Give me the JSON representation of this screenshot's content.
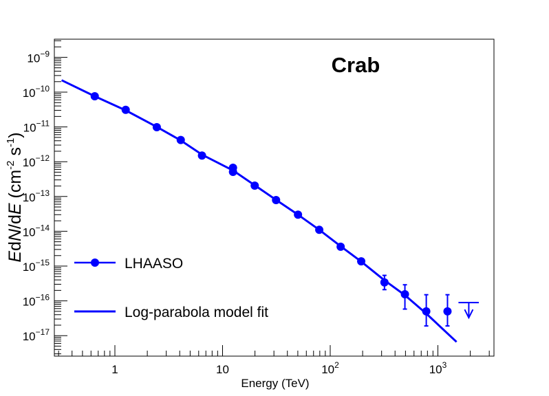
{
  "chart_data": {
    "type": "scatter",
    "title": "Crab",
    "xlabel": "Energy (TeV)",
    "ylabel": "EdN/dE (cm^-2 s^-1)",
    "xscale": "log",
    "yscale": "log",
    "xlim": [
      0.3,
      3200
    ],
    "ylim": [
      3e-18,
      3.3e-09
    ],
    "x_tick_labels": [
      {
        "value": 1,
        "base": "1",
        "exp": ""
      },
      {
        "value": 10,
        "base": "10",
        "exp": ""
      },
      {
        "value": 100,
        "base": "10",
        "exp": "2"
      },
      {
        "value": 1000,
        "base": "10",
        "exp": "3"
      }
    ],
    "y_tick_labels": [
      {
        "value": 1e-09,
        "base": "10",
        "exp": "−9"
      },
      {
        "value": 1e-10,
        "base": "10",
        "exp": "−10"
      },
      {
        "value": 1e-11,
        "base": "10",
        "exp": "−11"
      },
      {
        "value": 1e-12,
        "base": "10",
        "exp": "−12"
      },
      {
        "value": 1e-13,
        "base": "10",
        "exp": "−13"
      },
      {
        "value": 1e-14,
        "base": "10",
        "exp": "−14"
      },
      {
        "value": 1e-15,
        "base": "10",
        "exp": "−15"
      },
      {
        "value": 1e-16,
        "base": "10",
        "exp": "−16"
      },
      {
        "value": 1e-17,
        "base": "10",
        "exp": "−17"
      }
    ],
    "grid": false,
    "legend": {
      "placement": "bottom-left",
      "entries": [
        {
          "label": "LHAASO",
          "style": "marker-line"
        },
        {
          "label": "Log-parabola model fit",
          "style": "line"
        }
      ]
    },
    "color": "#0000ff",
    "series": [
      {
        "name": "LHAASO",
        "type": "scatter",
        "points": [
          {
            "x": 0.65,
            "y": 7.6e-11
          },
          {
            "x": 1.26,
            "y": 3.1e-11
          },
          {
            "x": 2.45,
            "y": 9.8e-12
          },
          {
            "x": 4.09,
            "y": 4.2e-12
          },
          {
            "x": 6.44,
            "y": 1.5e-12
          },
          {
            "x": 12.5,
            "y": 6.7e-13
          },
          {
            "x": 12.5,
            "y": 5.1e-13
          },
          {
            "x": 19.9,
            "y": 2.05e-13
          },
          {
            "x": 31.4,
            "y": 7.9e-14
          },
          {
            "x": 50.2,
            "y": 3e-14
          },
          {
            "x": 79.1,
            "y": 1.1e-14
          },
          {
            "x": 125,
            "y": 3.6e-15
          },
          {
            "x": 194,
            "y": 1.37e-15
          },
          {
            "x": 319,
            "y": 3.4e-16,
            "y_low": 2.1e-16,
            "y_high": 5.4e-16
          },
          {
            "x": 494,
            "y": 1.55e-16,
            "y_low": 5.8e-17,
            "y_high": 2.9e-16
          },
          {
            "x": 780,
            "y": 5e-17,
            "y_low": 1.9e-17,
            "y_high": 1.5e-16
          },
          {
            "x": 1228,
            "y": 5e-17,
            "y_low": 1.9e-17,
            "y_high": 1.5e-16
          }
        ],
        "upper_limits": [
          {
            "x": 1936,
            "y": 8.9e-17,
            "x_low": 1380,
            "x_high": 2700
          }
        ]
      },
      {
        "name": "Log-parabola model fit",
        "type": "line",
        "points": [
          {
            "x": 0.32,
            "y": 2.2e-10
          },
          {
            "x": 0.65,
            "y": 7.6e-11
          },
          {
            "x": 1.26,
            "y": 3e-11
          },
          {
            "x": 2.45,
            "y": 1e-11
          },
          {
            "x": 4.09,
            "y": 4.1e-12
          },
          {
            "x": 6.44,
            "y": 1.6e-12
          },
          {
            "x": 12.5,
            "y": 5.6e-13
          },
          {
            "x": 19.9,
            "y": 2.1e-13
          },
          {
            "x": 31.4,
            "y": 8e-14
          },
          {
            "x": 50.2,
            "y": 3e-14
          },
          {
            "x": 79.1,
            "y": 1.1e-14
          },
          {
            "x": 125,
            "y": 3.7e-15
          },
          {
            "x": 194,
            "y": 1.35e-15
          },
          {
            "x": 319,
            "y": 3.9e-16
          },
          {
            "x": 494,
            "y": 1.45e-16
          },
          {
            "x": 780,
            "y": 4.3e-17
          },
          {
            "x": 1490,
            "y": 6.6e-18
          }
        ]
      }
    ]
  }
}
